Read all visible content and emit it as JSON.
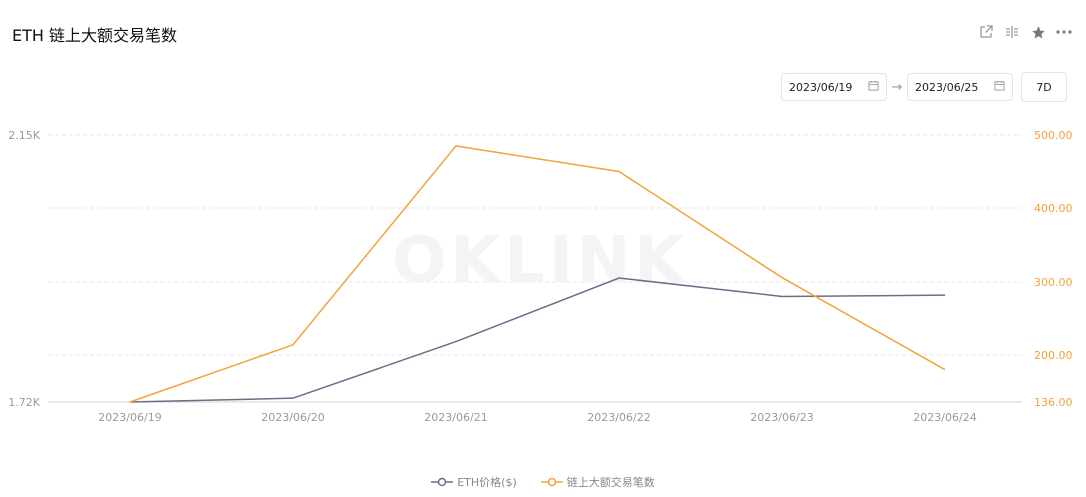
{
  "header": {
    "title": "ETH 链上大额交易笔数"
  },
  "toolbar": {
    "icons": [
      "share-icon",
      "compare-icon",
      "star-icon",
      "more-icon"
    ]
  },
  "date_range": {
    "start": "2023/06/19",
    "end": "2023/06/25",
    "range_label": "7D"
  },
  "watermark": "OKLINK",
  "colors": {
    "eth_price": "#6e6c86",
    "large_tx": "#f2a33a",
    "grid": "#e6e6e6"
  },
  "chart_data": {
    "type": "line",
    "x": [
      "2023/06/19",
      "2023/06/20",
      "2023/06/21",
      "2023/06/22",
      "2023/06/23",
      "2023/06/24"
    ],
    "series": [
      {
        "name": "ETH价格($)",
        "axis": "left",
        "values": [
          1720,
          1726,
          1815,
          1915,
          1886,
          1888
        ]
      },
      {
        "name": "链上大额交易笔数",
        "axis": "right",
        "values": [
          136,
          214,
          485,
          450,
          306,
          180
        ]
      }
    ],
    "y_left": {
      "ticks": [
        "2.15K",
        "1.72K"
      ],
      "tick_values": [
        2150,
        1720
      ],
      "range": [
        1720,
        2150
      ]
    },
    "y_right": {
      "ticks": [
        "500.00",
        "400.00",
        "300.00",
        "200.00",
        "136.00"
      ],
      "tick_values": [
        500,
        400,
        300,
        200,
        136
      ],
      "range": [
        136,
        500
      ]
    },
    "grid": true,
    "legend_position": "bottom"
  }
}
